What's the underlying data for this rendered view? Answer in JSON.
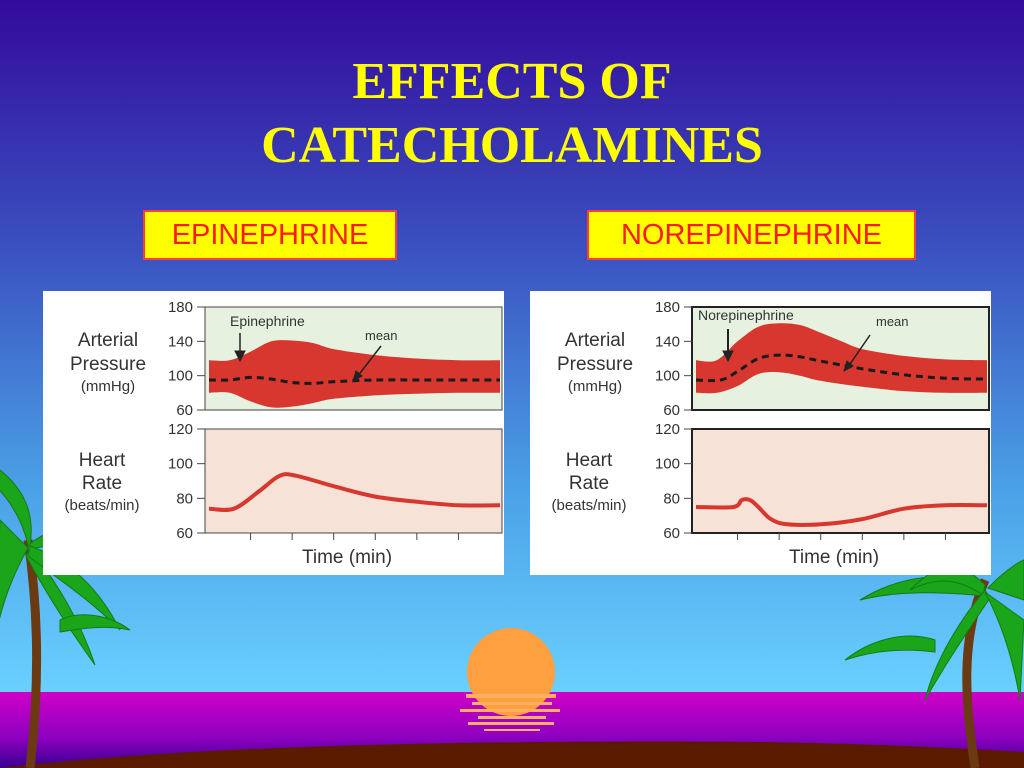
{
  "slide": {
    "title_line1": "EFFECTS OF",
    "title_line2": "CATECHOLAMINES"
  },
  "colors": {
    "sky_top": "#3a0ea0",
    "sky_bottom": "#66ccff",
    "title": "#ffff00",
    "label_text": "#ff1a1a",
    "label_bg": "#ffff00",
    "band": "#d8372f",
    "pressure_bg": "#e6f2df",
    "hr_bg": "#f6e2d6",
    "sun": "#ffa040",
    "sea": "#c000c8",
    "palm": "#1a9a1a"
  },
  "chart_data": [
    {
      "type": "area",
      "label": "EPINEPHRINE",
      "top_panel": {
        "ylabel": [
          "Arterial",
          "Pressure",
          "(mmHg)"
        ],
        "yticks": [
          60,
          100,
          140,
          180
        ],
        "ylim": [
          60,
          180
        ],
        "grid": false,
        "annotations": [
          "Epinephrine",
          "mean"
        ],
        "systolic": [
          [
            0,
            118
          ],
          [
            0.5,
            118
          ],
          [
            1,
            128
          ],
          [
            1.5,
            140
          ],
          [
            2,
            141
          ],
          [
            2.5,
            138
          ],
          [
            3,
            131
          ],
          [
            4,
            124
          ],
          [
            5,
            120
          ],
          [
            6,
            118
          ],
          [
            7,
            118
          ]
        ],
        "diastolic": [
          [
            0,
            80
          ],
          [
            0.5,
            80
          ],
          [
            1,
            70
          ],
          [
            1.5,
            63
          ],
          [
            2,
            64
          ],
          [
            2.5,
            68
          ],
          [
            3,
            73
          ],
          [
            4,
            77
          ],
          [
            5,
            79
          ],
          [
            6,
            80
          ],
          [
            7,
            80
          ]
        ],
        "mean": [
          [
            0,
            95
          ],
          [
            0.5,
            95
          ],
          [
            1,
            98
          ],
          [
            1.5,
            96
          ],
          [
            2,
            92
          ],
          [
            2.5,
            91
          ],
          [
            3,
            93
          ],
          [
            4,
            95
          ],
          [
            5,
            95
          ],
          [
            6,
            95
          ],
          [
            7,
            95
          ]
        ]
      },
      "bottom_panel": {
        "ylabel": [
          "Heart",
          "Rate",
          "(beats/min)"
        ],
        "yticks": [
          60,
          80,
          100,
          120
        ],
        "ylim": [
          60,
          120
        ],
        "xlabel": "Time (min)",
        "series": [
          [
            0,
            74
          ],
          [
            0.6,
            74
          ],
          [
            1.2,
            84
          ],
          [
            1.7,
            93
          ],
          [
            2.1,
            93
          ],
          [
            3,
            87
          ],
          [
            4,
            81
          ],
          [
            5,
            78
          ],
          [
            6,
            76
          ],
          [
            7,
            76
          ]
        ]
      }
    },
    {
      "type": "area",
      "label": "NOREPINEPHRINE",
      "top_panel": {
        "ylabel": [
          "Arterial",
          "Pressure",
          "(mmHg)"
        ],
        "yticks": [
          60,
          100,
          140,
          180
        ],
        "ylim": [
          60,
          180
        ],
        "grid": false,
        "annotations": [
          "Norepinephrine",
          "mean"
        ],
        "systolic": [
          [
            0,
            118
          ],
          [
            0.5,
            118
          ],
          [
            1,
            140
          ],
          [
            1.5,
            157
          ],
          [
            2,
            161
          ],
          [
            2.5,
            159
          ],
          [
            3,
            150
          ],
          [
            3.5,
            140
          ],
          [
            4,
            131
          ],
          [
            5,
            123
          ],
          [
            6,
            119
          ],
          [
            7,
            118
          ]
        ],
        "diastolic": [
          [
            0,
            80
          ],
          [
            0.5,
            80
          ],
          [
            1,
            88
          ],
          [
            1.5,
            102
          ],
          [
            2,
            104
          ],
          [
            2.5,
            100
          ],
          [
            3,
            94
          ],
          [
            4,
            87
          ],
          [
            5,
            82
          ],
          [
            6,
            80
          ],
          [
            7,
            80
          ]
        ],
        "mean": [
          [
            0,
            95
          ],
          [
            0.6,
            95
          ],
          [
            1,
            105
          ],
          [
            1.5,
            120
          ],
          [
            2,
            124
          ],
          [
            2.5,
            122
          ],
          [
            3,
            117
          ],
          [
            4,
            108
          ],
          [
            5,
            101
          ],
          [
            6,
            97
          ],
          [
            7,
            96
          ]
        ]
      },
      "bottom_panel": {
        "ylabel": [
          "Heart",
          "Rate",
          "(beats/min)"
        ],
        "yticks": [
          60,
          80,
          100,
          120
        ],
        "ylim": [
          60,
          120
        ],
        "xlabel": "Time (min)",
        "series": [
          [
            0,
            75
          ],
          [
            0.9,
            75
          ],
          [
            1.1,
            79
          ],
          [
            1.3,
            79
          ],
          [
            1.5,
            75
          ],
          [
            1.8,
            68
          ],
          [
            2.2,
            65
          ],
          [
            3,
            65
          ],
          [
            4,
            68
          ],
          [
            5,
            74
          ],
          [
            6,
            76
          ],
          [
            7,
            76
          ]
        ]
      }
    }
  ]
}
